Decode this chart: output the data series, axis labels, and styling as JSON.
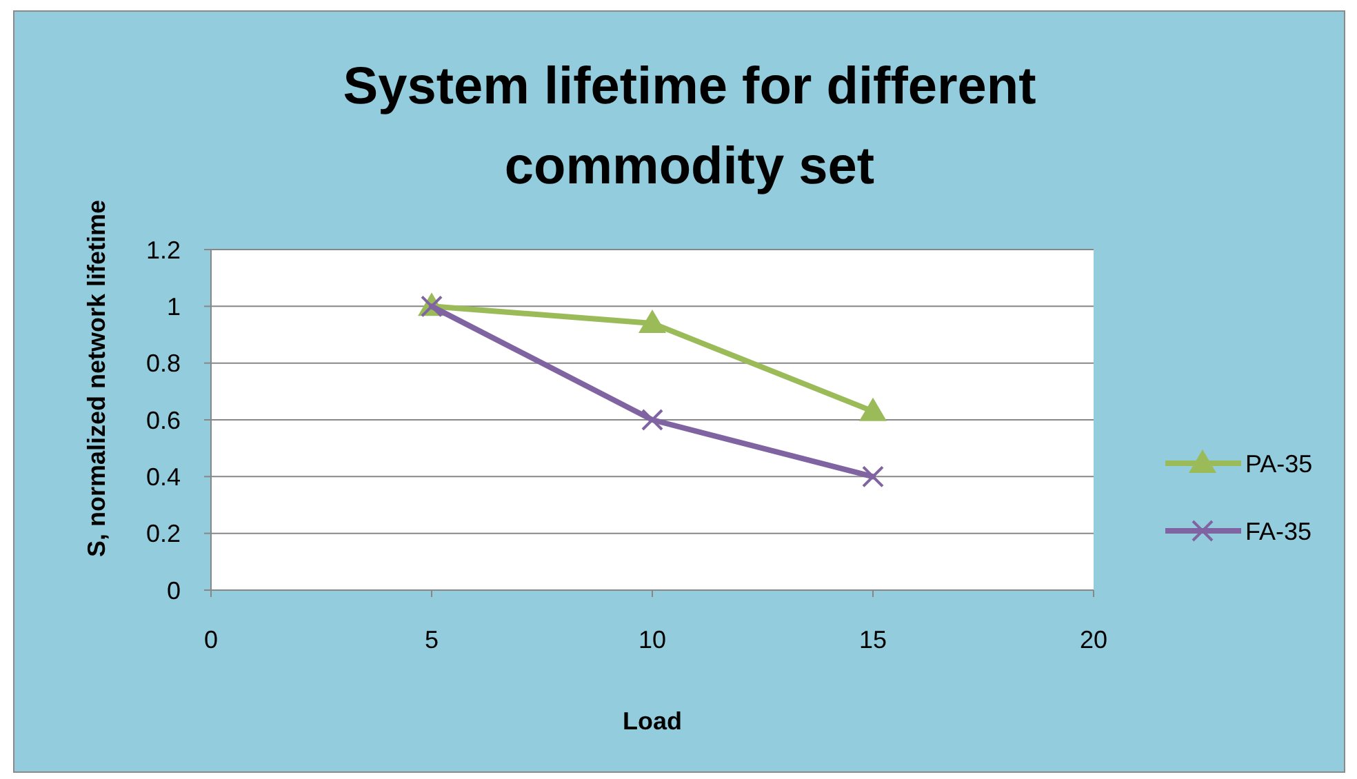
{
  "chart_data": {
    "type": "line",
    "title": "System lifetime for different commodity set",
    "xlabel": "Load",
    "ylabel": "S, normalized network lifetime",
    "x": [
      5,
      10,
      15
    ],
    "series": [
      {
        "name": "PA-35",
        "color": "#9bbb59",
        "marker": "triangle",
        "values": [
          1,
          0.94,
          0.63
        ]
      },
      {
        "name": "FA-35",
        "color": "#8064a2",
        "marker": "cross",
        "values": [
          1,
          0.6,
          0.4
        ]
      }
    ],
    "xlim": [
      0,
      20
    ],
    "xticks": [
      0,
      5,
      10,
      15,
      20
    ],
    "ylim": [
      0,
      1.2
    ],
    "yticks": [
      0,
      0.2,
      0.4,
      0.6,
      0.8,
      1,
      1.2
    ],
    "grid": "y",
    "legend": "right",
    "line_style": "solid"
  }
}
